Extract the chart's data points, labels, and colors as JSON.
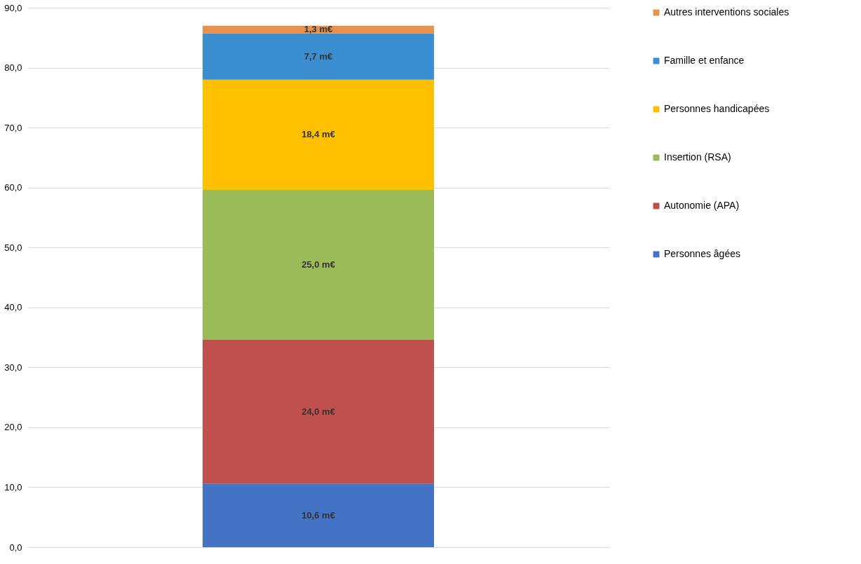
{
  "chart_data": {
    "type": "bar",
    "stacked": true,
    "categories": [
      null
    ],
    "series": [
      {
        "name": "Personnes âgées",
        "color": "#4472c4",
        "values": [
          10.6
        ],
        "value_labels": [
          "10,6 m€"
        ]
      },
      {
        "name": "Autonomie (APA)",
        "color": "#c0504d",
        "values": [
          24.0
        ],
        "value_labels": [
          "24,0 m€"
        ]
      },
      {
        "name": "Insertion (RSA)",
        "color": "#9bbb59",
        "values": [
          25.0
        ],
        "value_labels": [
          "25,0 m€"
        ]
      },
      {
        "name": "Personnes handicapées",
        "color": "#ffc000",
        "values": [
          18.4
        ],
        "value_labels": [
          "18,4 m€"
        ]
      },
      {
        "name": "Famille et enfance",
        "color": "#3b8fd1",
        "values": [
          7.7
        ],
        "value_labels": [
          "7,7 m€"
        ]
      },
      {
        "name": "Autres interventions sociales",
        "color": "#e8914b",
        "values": [
          1.3
        ],
        "value_labels": [
          "1,3 m€"
        ]
      }
    ],
    "ylim": [
      0,
      90
    ],
    "yticks": [
      {
        "value": 0,
        "label": "0,0"
      },
      {
        "value": 10,
        "label": "10,0"
      },
      {
        "value": 20,
        "label": "20,0"
      },
      {
        "value": 30,
        "label": "30,0"
      },
      {
        "value": 40,
        "label": "40,0"
      },
      {
        "value": 50,
        "label": "50,0"
      },
      {
        "value": 60,
        "label": "60,0"
      },
      {
        "value": 70,
        "label": "70,0"
      },
      {
        "value": 80,
        "label": "80,0"
      },
      {
        "value": 90,
        "label": "90,0"
      }
    ],
    "grid": "y",
    "legend": "right",
    "tick_labels": "y"
  }
}
